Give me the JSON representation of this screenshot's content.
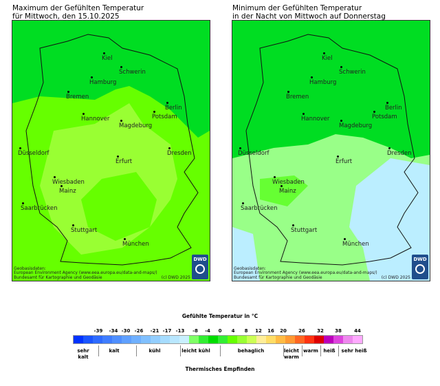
{
  "left_panel": {
    "title": "Maximum der Gefühlten Temperatur\nfür Mittwoch, den 15.10.2025",
    "cities": [
      "Kiel",
      "Hamburg",
      "Schwerin",
      "Bremen",
      "Hannover",
      "Berlin",
      "Potsdam",
      "Magdeburg",
      "Düsseldorf",
      "Erfurt",
      "Dresden",
      "Wiesbaden",
      "Mainz",
      "Saarbrücken",
      "Stuttgart",
      "München"
    ],
    "attribution": "Geobasisdaten:\nEuropean Environment Agency (www.eea.europa.eu/data-and-maps/)\nBundesamt für Kartographie und Geodäsie",
    "copyright": "(c) DWD 2025",
    "logo": "DWD"
  },
  "right_panel": {
    "title": "Minimum der Gefühlten Temperatur\nin der Nacht von Mittwoch auf Donnerstag",
    "cities": [
      "Kiel",
      "Hamburg",
      "Schwerin",
      "Bremen",
      "Hannover",
      "Berlin",
      "Potsdam",
      "Magdeburg",
      "Düsseldorf",
      "Erfurt",
      "Dresden",
      "Wiesbaden",
      "Mainz",
      "Saarbrücken",
      "Stuttgart",
      "München"
    ],
    "attribution": "Geobasisdaten:\nEuropean Environment Agency (www.eea.europa.eu/data-and-maps/)\nBundesamt für Kartographie und Geodäsie",
    "copyright": "(c) DWD 2025",
    "logo": "DWD"
  },
  "legend": {
    "title": "Gefühlte Temperatur in °C",
    "colors": [
      "#0033ff",
      "#1a55ff",
      "#2e6bff",
      "#3f7dff",
      "#4f8fff",
      "#5fa0ff",
      "#6fb0ff",
      "#80c0ff",
      "#93ceff",
      "#a6dcff",
      "#b9e7ff",
      "#c9f0ff",
      "#7fff66",
      "#33ee33",
      "#00dd00",
      "#33ee33",
      "#66ff00",
      "#99ff33",
      "#ccff55",
      "#ffee99",
      "#ffdd66",
      "#ffbb44",
      "#ff9933",
      "#ff6622",
      "#ff3311",
      "#dd0000",
      "#bb00bb",
      "#dd44dd",
      "#ee88ee",
      "#ffaaff"
    ],
    "ticks": [
      "-39",
      "-34",
      "-30",
      "-26",
      "-21",
      "-17",
      "-13",
      "-8",
      "-4",
      "0",
      "4",
      "8",
      "12",
      "16",
      "20",
      "26",
      "32",
      "38",
      "44"
    ],
    "categories": [
      "sehr\nkalt",
      "kalt",
      "kühl",
      "leicht kühl",
      "behaglich",
      "leicht\nwarm",
      "warm",
      "heiß",
      "sehr heiß"
    ],
    "footer": "Thermisches Empfinden"
  }
}
